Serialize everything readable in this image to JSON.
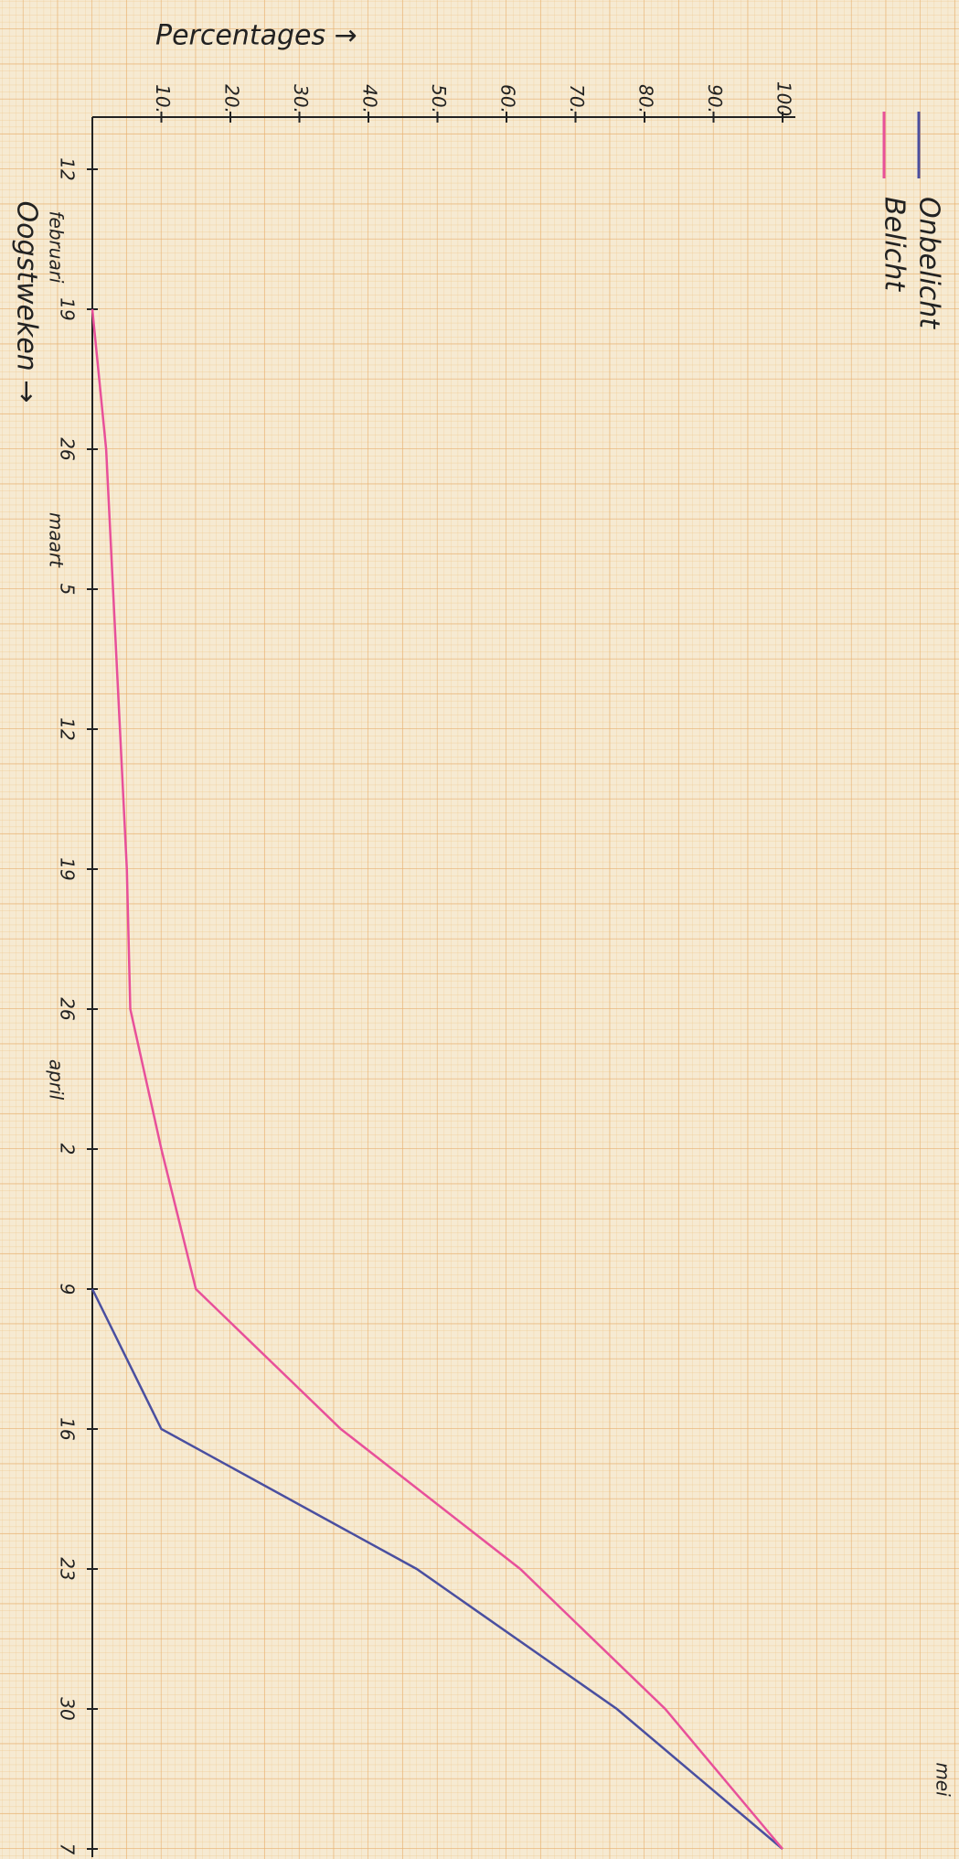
{
  "chart_data": {
    "type": "line",
    "title": "Percentages →",
    "x_label": "Oogstweken →",
    "months": [
      "februari",
      "maart",
      "april",
      "mei"
    ],
    "categories": [
      "12",
      "19",
      "26",
      "5",
      "12",
      "19",
      "26",
      "2",
      "9",
      "16",
      "23",
      "30",
      "7"
    ],
    "ylim": [
      0,
      100
    ],
    "yticks": [
      {
        "value": 10,
        "label": "10."
      },
      {
        "value": 20,
        "label": "20."
      },
      {
        "value": 30,
        "label": "30."
      },
      {
        "value": 40,
        "label": "40."
      },
      {
        "value": 50,
        "label": "50."
      },
      {
        "value": 60,
        "label": "60."
      },
      {
        "value": 70,
        "label": "70."
      },
      {
        "value": 80,
        "label": "80."
      },
      {
        "value": 90,
        "label": "90."
      },
      100
    ],
    "series": [
      {
        "name": "Onbelicht",
        "color": "#4a4fa0",
        "values": [
          null,
          null,
          null,
          null,
          null,
          null,
          null,
          null,
          0,
          10,
          47,
          76,
          100
        ]
      },
      {
        "name": "Belicht",
        "color": "#e8509a",
        "values": [
          null,
          0,
          2,
          3,
          4,
          5,
          5.5,
          10,
          15,
          36,
          62,
          83,
          100
        ]
      }
    ]
  }
}
